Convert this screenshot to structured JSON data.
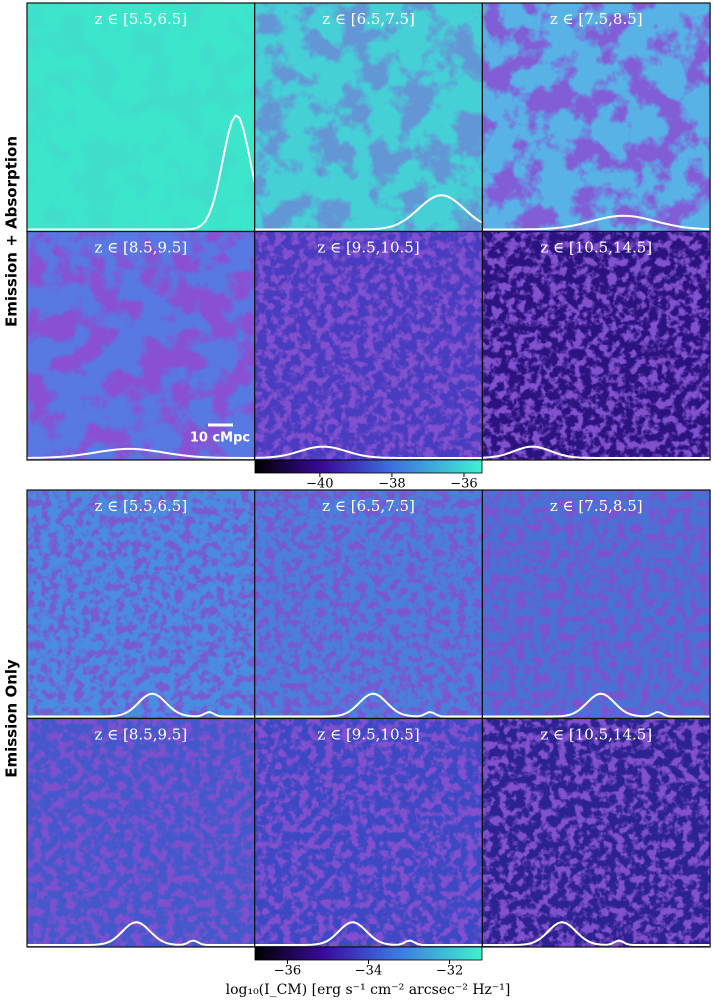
{
  "sections": [
    {
      "label": "Emission + Absorption",
      "panels": [
        "z ∈ [5.5,6.5]",
        "z ∈ [6.5,7.5]",
        "z ∈ [7.5,8.5]",
        "z ∈ [8.5,9.5]",
        "z ∈ [9.5,10.5]",
        "z ∈ [10.5,14.5]"
      ],
      "colorbar": {
        "lim": [
          -41.8,
          -35.5
        ],
        "ticks": [
          {
            "value": -40,
            "label": "−40"
          },
          {
            "value": -38,
            "label": "−38"
          },
          {
            "value": -36,
            "label": "−36"
          }
        ]
      }
    },
    {
      "label": "Emission Only",
      "panels": [
        "z ∈ [5.5,6.5]",
        "z ∈ [6.5,7.5]",
        "z ∈ [7.5,8.5]",
        "z ∈ [8.5,9.5]",
        "z ∈ [9.5,10.5]",
        "z ∈ [10.5,14.5]"
      ],
      "colorbar": {
        "lim": [
          -36.8,
          -31.2
        ],
        "ticks": [
          {
            "value": -36,
            "label": "−36"
          },
          {
            "value": -34,
            "label": "−34"
          },
          {
            "value": -32,
            "label": "−32"
          }
        ]
      }
    }
  ],
  "scale_bar": "10 cMpc",
  "colorbar_label": "log₁₀(I_CM) [erg s⁻¹ cm⁻² arcsec⁻² Hz⁻¹]"
}
